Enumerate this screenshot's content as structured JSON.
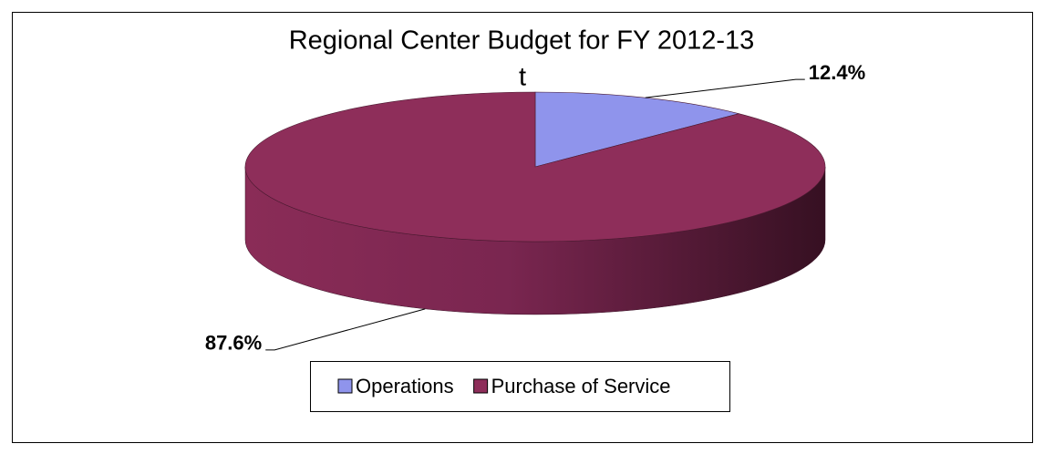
{
  "chart_data": {
    "type": "pie",
    "title": "Regional Center Budget for FY 2012-13",
    "subtitle": "t",
    "categories": [
      "Operations",
      "Purchase of Service"
    ],
    "values": [
      12.4,
      87.6
    ],
    "value_labels": [
      "12.4%",
      "87.6%"
    ],
    "colors": [
      "#8f94ec",
      "#8e2e5a"
    ],
    "legend": "bottom"
  }
}
